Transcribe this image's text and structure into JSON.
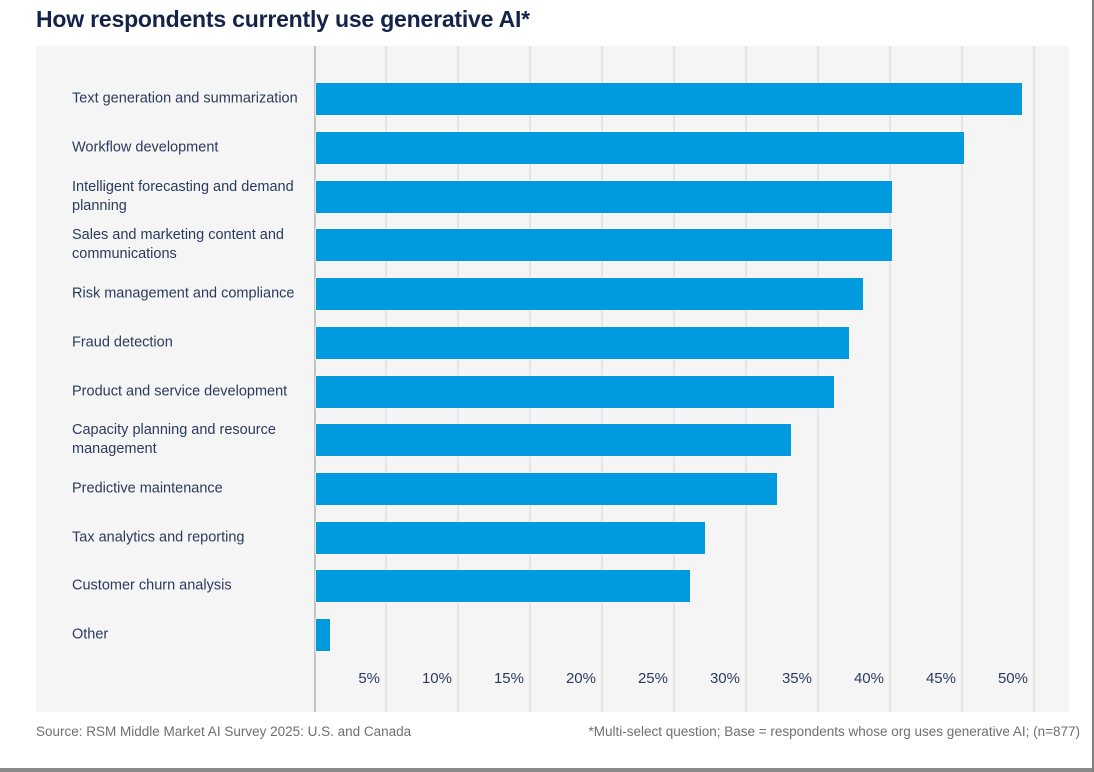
{
  "title": "How respondents currently use generative AI*",
  "footer": {
    "source": "Source: RSM Middle Market AI Survey 2025: U.S. and Canada",
    "note": "*Multi-select question; Base = respondents whose org uses generative AI; (n=877)"
  },
  "colors": {
    "bar": "#009ADE",
    "panel_bg": "#F5F5F6",
    "gridline": "#E4E4E5",
    "axis_line": "#C2C2C4",
    "title_text": "#15234B",
    "label_text": "#2C3A5C",
    "tick_text": "#2C3A5C",
    "footer_text": "#6F6F71",
    "frame": "#7F7F81",
    "bottom_rule": "#8A8A8C"
  },
  "chart_data": {
    "type": "bar",
    "orientation": "horizontal",
    "title": "How respondents currently use generative AI*",
    "categories": [
      "Text generation and summarization",
      "Workflow development",
      "Intelligent forecasting and demand planning",
      "Sales and marketing content and communications",
      "Risk management and compliance",
      "Fraud detection",
      "Product and service development",
      "Capacity planning and resource management",
      "Predictive maintenance",
      "Tax analytics and reporting",
      "Customer churn analysis",
      "Other"
    ],
    "values": [
      49,
      45,
      40,
      40,
      38,
      37,
      36,
      33,
      32,
      27,
      26,
      1
    ],
    "unit": "%",
    "xlabel": "",
    "ylabel": "",
    "xlim": [
      0,
      52
    ],
    "x_tick_values": [
      5,
      10,
      15,
      20,
      25,
      30,
      35,
      40,
      45,
      50
    ],
    "x_tick_labels": [
      "5%",
      "10%",
      "15%",
      "20%",
      "25%",
      "30%",
      "35%",
      "40%",
      "45%",
      "50%"
    ],
    "grid": true,
    "legend": false
  }
}
